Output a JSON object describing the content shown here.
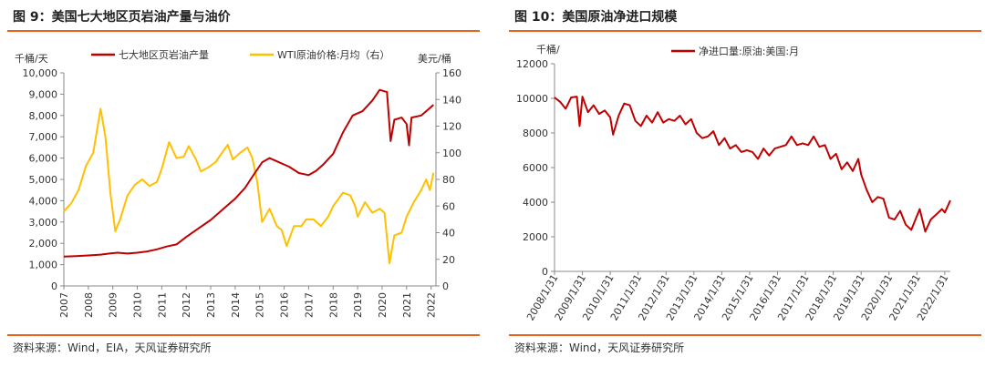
{
  "figures": [
    {
      "title": "图 9：美国七大地区页岩油产量与油价",
      "source": "资料来源：Wind，EIA，天风证券研究所"
    },
    {
      "title": "图 10：美国原油净进口规模",
      "source": "资料来源：Wind，天风证券研究所"
    }
  ],
  "chart_data": [
    {
      "type": "line",
      "left_unit": "千桶/天",
      "right_unit": "美元/桶",
      "ylim_left": [
        0,
        10000
      ],
      "ylim_right": [
        0,
        160
      ],
      "y_ticks_left": [
        "0",
        "1,000",
        "2,000",
        "3,000",
        "4,000",
        "5,000",
        "6,000",
        "7,000",
        "8,000",
        "9,000",
        "10,000"
      ],
      "y_ticks_right": [
        "0",
        "20",
        "40",
        "60",
        "80",
        "100",
        "120",
        "140",
        "160"
      ],
      "x_ticks": [
        "2007",
        "2008",
        "2009",
        "2010",
        "2011",
        "2012",
        "2013",
        "2014",
        "2015",
        "2016",
        "2017",
        "2018",
        "2019",
        "2020",
        "2021",
        "2022"
      ],
      "xlim": [
        2007,
        2022.2
      ],
      "grid": false,
      "legend": "top",
      "colors": {
        "production": "#c00000",
        "wti": "#ffc000"
      },
      "series": [
        {
          "name": "七大地区页岩油产量",
          "axis": "left",
          "points": [
            [
              2007.0,
              1380
            ],
            [
              2007.5,
              1400
            ],
            [
              2008.0,
              1430
            ],
            [
              2008.5,
              1470
            ],
            [
              2008.9,
              1530
            ],
            [
              2009.2,
              1560
            ],
            [
              2009.6,
              1520
            ],
            [
              2010.0,
              1560
            ],
            [
              2010.4,
              1620
            ],
            [
              2010.8,
              1720
            ],
            [
              2011.2,
              1850
            ],
            [
              2011.6,
              1950
            ],
            [
              2012.0,
              2300
            ],
            [
              2012.5,
              2700
            ],
            [
              2013.0,
              3100
            ],
            [
              2013.5,
              3600
            ],
            [
              2014.0,
              4100
            ],
            [
              2014.4,
              4600
            ],
            [
              2014.8,
              5300
            ],
            [
              2015.1,
              5800
            ],
            [
              2015.4,
              6000
            ],
            [
              2015.8,
              5800
            ],
            [
              2016.2,
              5600
            ],
            [
              2016.6,
              5300
            ],
            [
              2017.0,
              5200
            ],
            [
              2017.3,
              5400
            ],
            [
              2017.6,
              5700
            ],
            [
              2018.0,
              6200
            ],
            [
              2018.4,
              7200
            ],
            [
              2018.8,
              8000
            ],
            [
              2019.2,
              8200
            ],
            [
              2019.6,
              8700
            ],
            [
              2019.9,
              9200
            ],
            [
              2020.2,
              9100
            ],
            [
              2020.35,
              6800
            ],
            [
              2020.5,
              7800
            ],
            [
              2020.8,
              7900
            ],
            [
              2021.0,
              7600
            ],
            [
              2021.1,
              6600
            ],
            [
              2021.2,
              7900
            ],
            [
              2021.6,
              8000
            ],
            [
              2021.8,
              8200
            ],
            [
              2022.1,
              8500
            ]
          ]
        },
        {
          "name": "WTI原油价格:月均（右）",
          "axis": "right",
          "points": [
            [
              2007.0,
              56
            ],
            [
              2007.3,
              62
            ],
            [
              2007.6,
              72
            ],
            [
              2007.9,
              90
            ],
            [
              2008.2,
              100
            ],
            [
              2008.5,
              133
            ],
            [
              2008.7,
              112
            ],
            [
              2008.9,
              70
            ],
            [
              2009.1,
              41
            ],
            [
              2009.3,
              50
            ],
            [
              2009.6,
              68
            ],
            [
              2009.9,
              76
            ],
            [
              2010.2,
              80
            ],
            [
              2010.5,
              75
            ],
            [
              2010.8,
              78
            ],
            [
              2011.0,
              88
            ],
            [
              2011.3,
              108
            ],
            [
              2011.6,
              96
            ],
            [
              2011.9,
              97
            ],
            [
              2012.1,
              105
            ],
            [
              2012.4,
              95
            ],
            [
              2012.6,
              86
            ],
            [
              2012.9,
              89
            ],
            [
              2013.2,
              93
            ],
            [
              2013.5,
              101
            ],
            [
              2013.7,
              106
            ],
            [
              2013.9,
              95
            ],
            [
              2014.2,
              100
            ],
            [
              2014.5,
              104
            ],
            [
              2014.7,
              96
            ],
            [
              2014.9,
              78
            ],
            [
              2015.1,
              48
            ],
            [
              2015.4,
              58
            ],
            [
              2015.7,
              45
            ],
            [
              2015.9,
              42
            ],
            [
              2016.1,
              30
            ],
            [
              2016.4,
              45
            ],
            [
              2016.7,
              45
            ],
            [
              2016.9,
              50
            ],
            [
              2017.2,
              50
            ],
            [
              2017.5,
              45
            ],
            [
              2017.8,
              52
            ],
            [
              2018.0,
              60
            ],
            [
              2018.4,
              70
            ],
            [
              2018.7,
              68
            ],
            [
              2018.9,
              60
            ],
            [
              2019.0,
              52
            ],
            [
              2019.3,
              63
            ],
            [
              2019.6,
              55
            ],
            [
              2019.9,
              58
            ],
            [
              2020.1,
              55
            ],
            [
              2020.3,
              17
            ],
            [
              2020.5,
              38
            ],
            [
              2020.8,
              40
            ],
            [
              2021.0,
              52
            ],
            [
              2021.3,
              63
            ],
            [
              2021.6,
              72
            ],
            [
              2021.8,
              80
            ],
            [
              2021.95,
              72
            ],
            [
              2022.1,
              85
            ]
          ]
        }
      ]
    },
    {
      "type": "line",
      "left_unit": "千桶/",
      "ylim": [
        0,
        12000
      ],
      "y_ticks": [
        "0",
        "2000",
        "4000",
        "6000",
        "8000",
        "10000",
        "12000"
      ],
      "x_ticks": [
        "2008/1/31",
        "2009/1/31",
        "2010/1/31",
        "2011/1/31",
        "2012/1/31",
        "2013/1/31",
        "2014/1/31",
        "2015/1/31",
        "2016/1/31",
        "2017/1/31",
        "2018/1/31",
        "2019/1/31",
        "2020/1/31",
        "2021/1/31",
        "2022/1/31"
      ],
      "xlim": [
        2008.0,
        2022.2
      ],
      "grid": false,
      "legend": "top",
      "colors": {
        "net_imports": "#c00000"
      },
      "series": [
        {
          "name": "净进口量:原油:美国:月",
          "points": [
            [
              2008.0,
              10050
            ],
            [
              2008.2,
              9800
            ],
            [
              2008.4,
              9400
            ],
            [
              2008.6,
              10050
            ],
            [
              2008.8,
              10100
            ],
            [
              2008.9,
              8400
            ],
            [
              2009.0,
              10100
            ],
            [
              2009.2,
              9200
            ],
            [
              2009.4,
              9600
            ],
            [
              2009.6,
              9100
            ],
            [
              2009.8,
              9300
            ],
            [
              2010.0,
              8900
            ],
            [
              2010.1,
              7900
            ],
            [
              2010.3,
              9000
            ],
            [
              2010.5,
              9700
            ],
            [
              2010.7,
              9600
            ],
            [
              2010.9,
              8700
            ],
            [
              2011.1,
              8400
            ],
            [
              2011.3,
              9000
            ],
            [
              2011.5,
              8600
            ],
            [
              2011.7,
              9200
            ],
            [
              2011.9,
              8600
            ],
            [
              2012.1,
              8800
            ],
            [
              2012.3,
              8700
            ],
            [
              2012.5,
              9000
            ],
            [
              2012.7,
              8500
            ],
            [
              2012.9,
              8800
            ],
            [
              2013.1,
              8000
            ],
            [
              2013.3,
              7700
            ],
            [
              2013.5,
              7800
            ],
            [
              2013.7,
              8100
            ],
            [
              2013.9,
              7300
            ],
            [
              2014.1,
              7700
            ],
            [
              2014.3,
              7100
            ],
            [
              2014.5,
              7300
            ],
            [
              2014.7,
              6900
            ],
            [
              2014.9,
              7000
            ],
            [
              2015.1,
              6900
            ],
            [
              2015.3,
              6500
            ],
            [
              2015.5,
              7100
            ],
            [
              2015.7,
              6700
            ],
            [
              2015.9,
              7100
            ],
            [
              2016.1,
              7200
            ],
            [
              2016.3,
              7300
            ],
            [
              2016.5,
              7800
            ],
            [
              2016.7,
              7300
            ],
            [
              2016.9,
              7400
            ],
            [
              2017.1,
              7300
            ],
            [
              2017.3,
              7800
            ],
            [
              2017.5,
              7200
            ],
            [
              2017.7,
              7300
            ],
            [
              2017.9,
              6500
            ],
            [
              2018.1,
              6800
            ],
            [
              2018.3,
              5900
            ],
            [
              2018.5,
              6300
            ],
            [
              2018.7,
              5800
            ],
            [
              2018.9,
              6500
            ],
            [
              2019.0,
              5600
            ],
            [
              2019.2,
              4700
            ],
            [
              2019.4,
              4000
            ],
            [
              2019.6,
              4300
            ],
            [
              2019.8,
              4200
            ],
            [
              2020.0,
              3100
            ],
            [
              2020.2,
              3000
            ],
            [
              2020.4,
              3500
            ],
            [
              2020.6,
              2700
            ],
            [
              2020.8,
              2400
            ],
            [
              2021.0,
              3200
            ],
            [
              2021.1,
              3600
            ],
            [
              2021.3,
              2300
            ],
            [
              2021.5,
              3000
            ],
            [
              2021.7,
              3300
            ],
            [
              2021.9,
              3600
            ],
            [
              2022.0,
              3400
            ],
            [
              2022.2,
              4100
            ]
          ]
        }
      ]
    }
  ]
}
